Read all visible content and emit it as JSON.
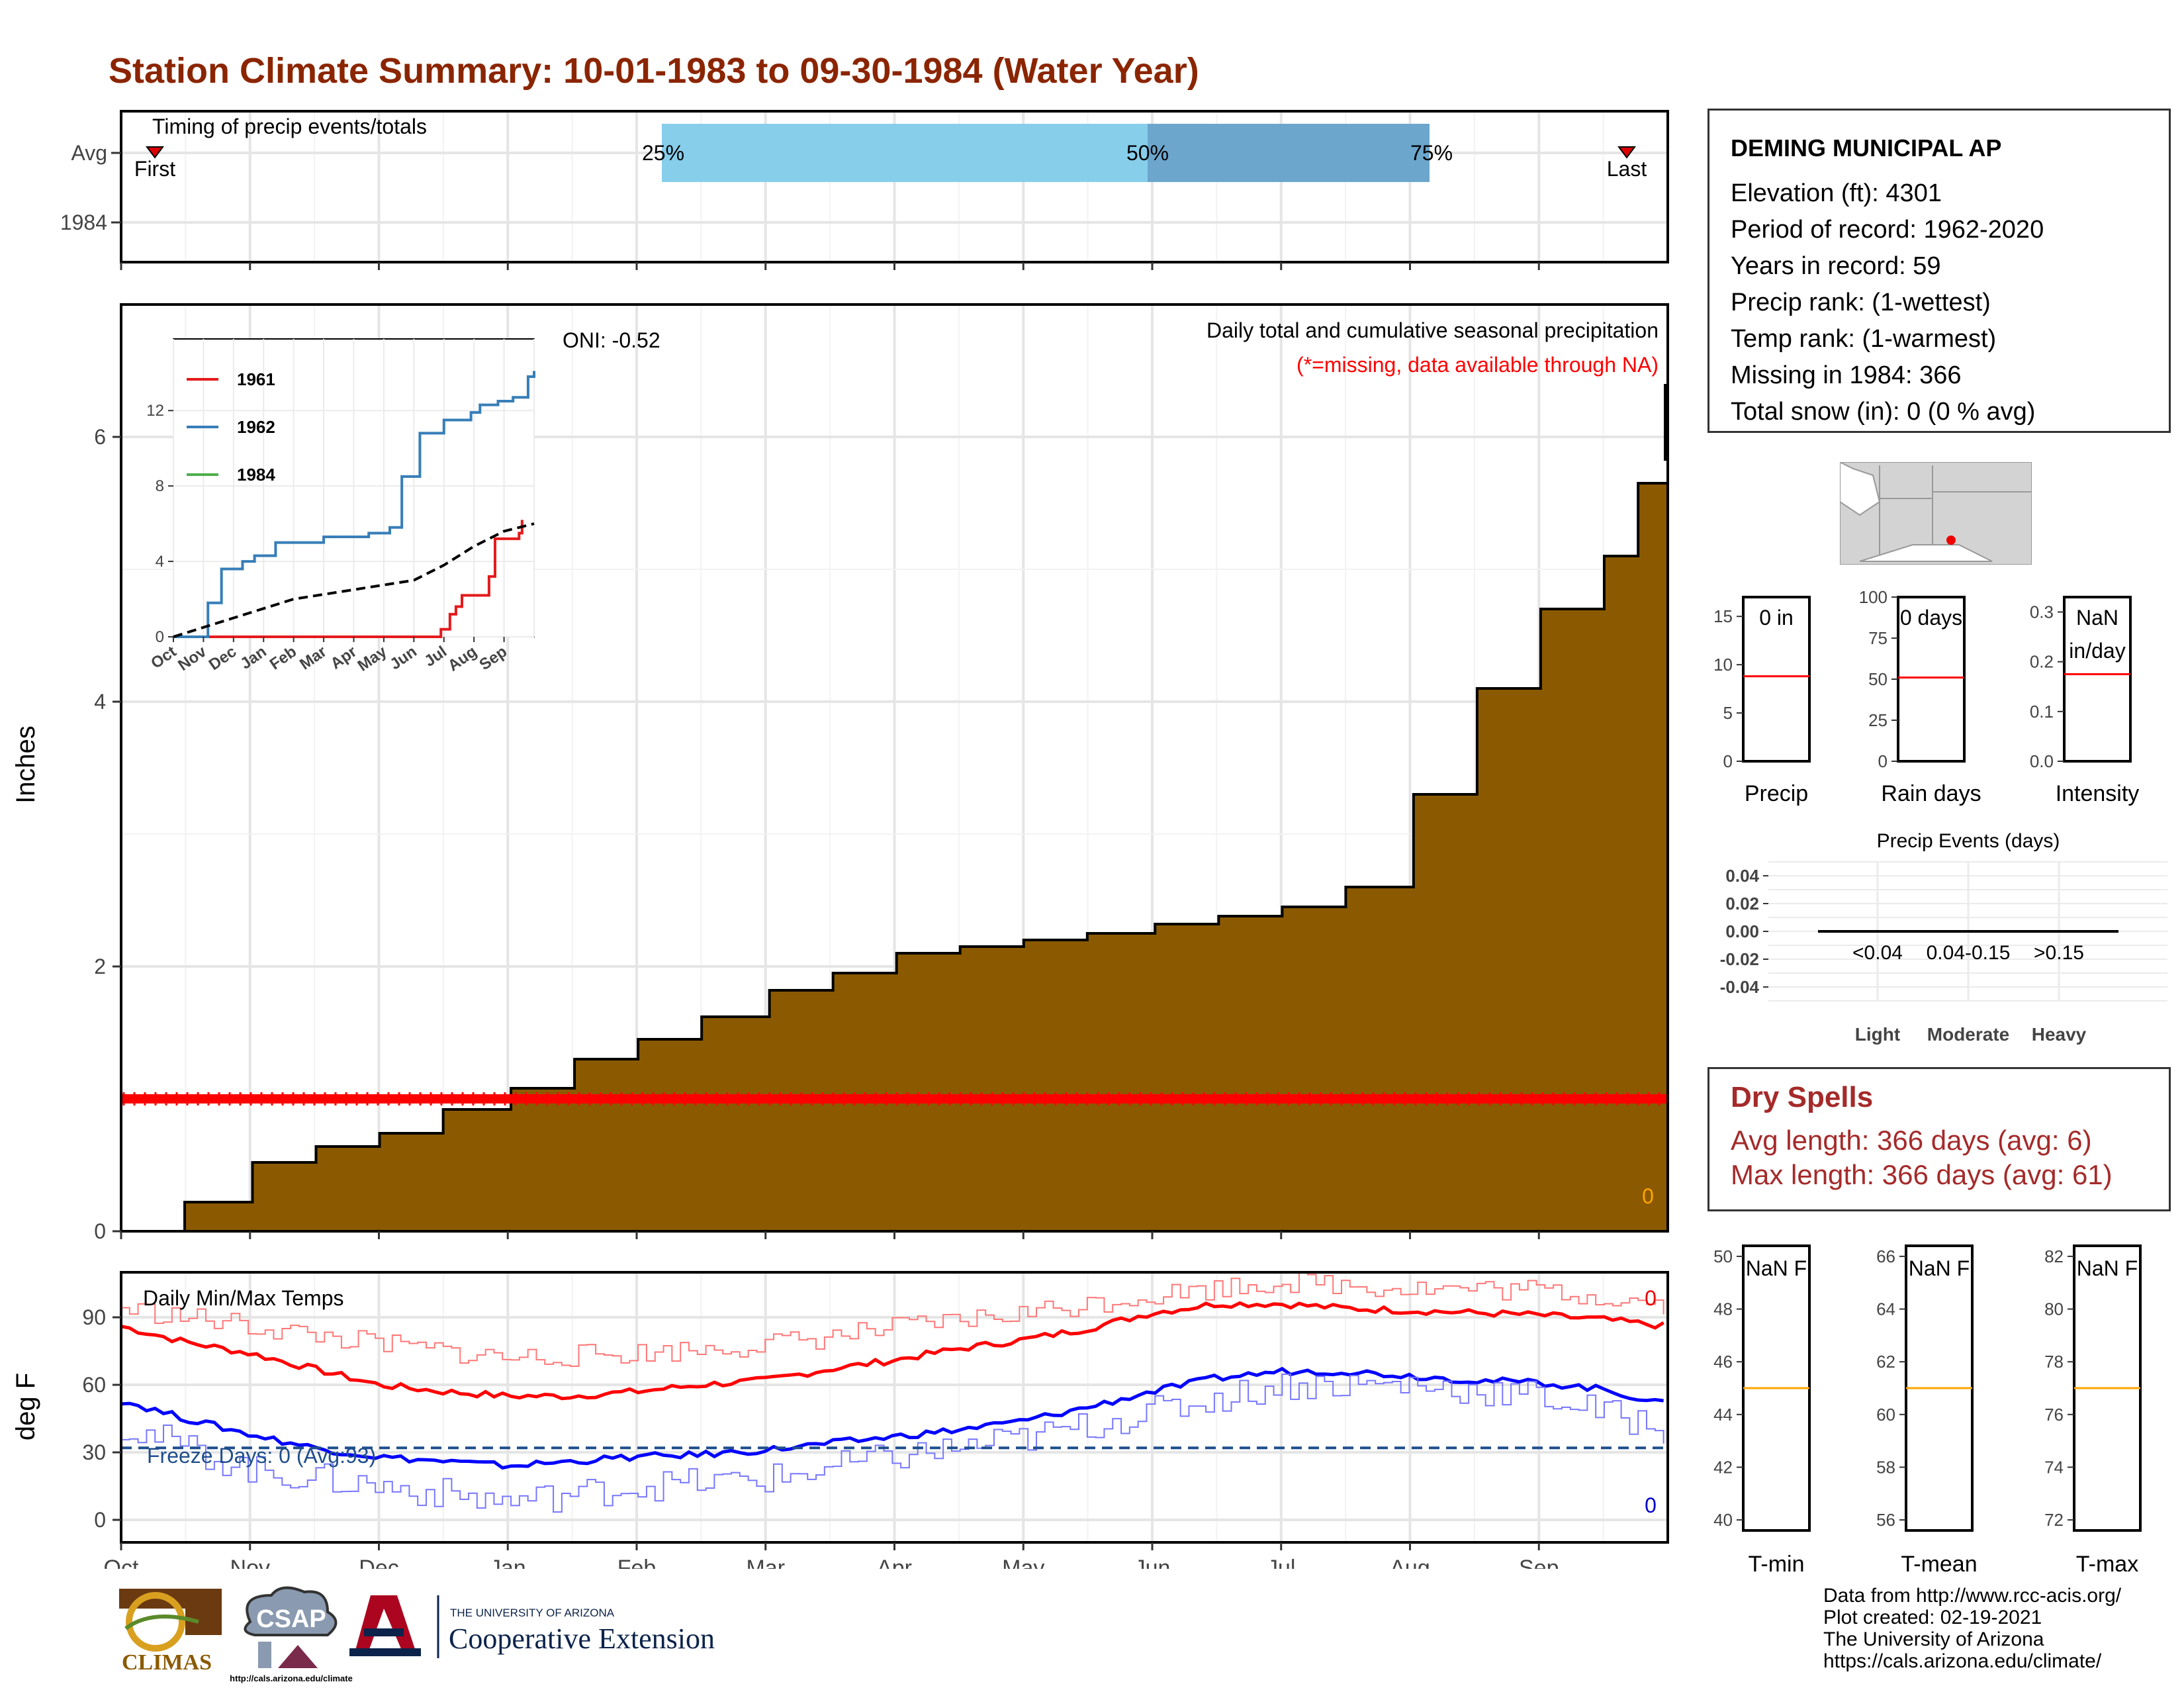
{
  "title": "Station Climate Summary: 10-01-1983 to 09-30-1984 (Water Year)",
  "months": [
    "Oct",
    "Nov",
    "Dec",
    "Jan",
    "Feb",
    "Mar",
    "Apr",
    "May",
    "Jun",
    "Jul",
    "Aug",
    "Sep"
  ],
  "timing": {
    "label": "Timing of precip events/totals",
    "rows": [
      "Avg",
      "1984"
    ],
    "first_label": "First",
    "last_label": "Last",
    "p25_label": "25%",
    "p50_label": "50%",
    "p75_label": "75%",
    "colors": {
      "q1": "#87CEEB",
      "q2": "#6CA6CD"
    }
  },
  "precip": {
    "ylabel": "Inches",
    "oni": "ONI: -0.52",
    "title": "Daily total and cumulative seasonal precipitation",
    "missing_note": "(*=missing, data available through NA)",
    "corner_value": "0",
    "yticks": [
      "0",
      "2",
      "4",
      "6"
    ],
    "fill_color": "#8B5A00",
    "missing_line_color": "#FF0000"
  },
  "inset": {
    "legend": [
      {
        "name": "1961",
        "color": "#E41A1C"
      },
      {
        "name": "1962",
        "color": "#377EB8"
      },
      {
        "name": "1984",
        "color": "#4DAF4A"
      }
    ],
    "yticks": [
      "0",
      "4",
      "8",
      "12"
    ]
  },
  "temps": {
    "ylabel": "deg F",
    "title": "Daily Min/Max Temps",
    "freeze_label": "Freeze Days: 0 (Avg:93)",
    "max_corner": "0",
    "min_corner": "0",
    "yticks": [
      "0",
      "30",
      "60",
      "90"
    ]
  },
  "station": {
    "name": "DEMING MUNICIPAL AP",
    "lines": [
      "Elevation (ft): 4301",
      "Period of record: 1962-2020",
      "Years in record: 59",
      "Precip rank:  (1-wettest)",
      "Temp rank:  (1-warmest)",
      "Missing in 1984: 366",
      "Total snow (in): 0 (0 % avg)"
    ]
  },
  "small_bars": [
    {
      "label": "Precip",
      "value": "0 in",
      "ticks": [
        "0",
        "5",
        "10",
        "15"
      ]
    },
    {
      "label": "Rain days",
      "value": "0 days",
      "ticks": [
        "0",
        "25",
        "50",
        "75",
        "100"
      ]
    },
    {
      "label": "Intensity",
      "value_line1": "NaN",
      "value_line2": "in/day",
      "ticks": [
        "0.0",
        "0.1",
        "0.2",
        "0.3"
      ]
    }
  ],
  "events": {
    "title": "Precip Events (days)",
    "yticks": [
      "0.04",
      "0.02",
      "0.00",
      "-0.02",
      "-0.04"
    ],
    "categories": [
      "Light",
      "Moderate",
      "Heavy"
    ],
    "ranges": [
      "<0.04",
      "0.04-0.15",
      ">0.15"
    ]
  },
  "dry_spells": {
    "title": "Dry Spells",
    "avg": "Avg length: 366 days (avg: 6)",
    "max": "Max length: 366 days (avg: 61)"
  },
  "temp_bars": [
    {
      "label": "T-min",
      "value": "NaN F",
      "ticks": [
        "40",
        "42",
        "44",
        "46",
        "48",
        "50"
      ]
    },
    {
      "label": "T-mean",
      "value": "NaN F",
      "ticks": [
        "56",
        "58",
        "60",
        "62",
        "64",
        "66"
      ]
    },
    {
      "label": "T-max",
      "value": "NaN F",
      "ticks": [
        "72",
        "74",
        "76",
        "78",
        "80",
        "82"
      ]
    }
  ],
  "footer": {
    "lines": [
      "Data from http://www.rcc-acis.org/",
      "Plot created: 02-19-2021",
      "The University of Arizona",
      "https://cals.arizona.edu/climate/"
    ]
  },
  "logos": {
    "climas": "CLIMAS",
    "csap": "CSAP",
    "csap_url": "http://cals.arizona.edu/climate",
    "ua_small": "THE UNIVERSITY OF ARIZONA",
    "ua_big": "Cooperative Extension"
  },
  "chart_data": [
    {
      "type": "area",
      "title": "Daily total and cumulative seasonal precipitation",
      "ylabel": "Inches",
      "ylim": [
        0,
        7
      ],
      "x_categories": [
        "Oct",
        "Nov",
        "Dec",
        "Jan",
        "Feb",
        "Mar",
        "Apr",
        "May",
        "Jun",
        "Jul",
        "Aug",
        "Sep"
      ],
      "series": [
        {
          "name": "cumulative",
          "x_day": [
            0,
            15,
            31,
            46,
            61,
            76,
            92,
            107,
            122,
            137,
            153,
            168,
            183,
            198,
            213,
            228,
            244,
            259,
            274,
            289,
            305,
            320,
            335,
            350,
            358,
            365
          ],
          "values": [
            0,
            0.22,
            0.52,
            0.64,
            0.74,
            0.92,
            1.08,
            1.3,
            1.45,
            1.62,
            1.82,
            1.95,
            2.1,
            2.15,
            2.2,
            2.25,
            2.32,
            2.38,
            2.45,
            2.6,
            3.3,
            4.1,
            4.7,
            5.1,
            5.65,
            5.82
          ]
        }
      ],
      "missing_level": 1.0
    },
    {
      "type": "line",
      "title": "",
      "ylim": [
        0,
        14
      ],
      "x_categories": [
        "Oct",
        "Nov",
        "Dec",
        "Jan",
        "Feb",
        "Mar",
        "Apr",
        "May",
        "Jun",
        "Jul",
        "Aug",
        "Sep"
      ],
      "series": [
        {
          "name": "1961",
          "x_month": [
            0,
            8.6,
            8.9,
            9.2,
            9.4,
            9.6,
            10.5,
            10.7,
            11.5,
            11.6
          ],
          "values": [
            0,
            0,
            0.4,
            1.2,
            1.6,
            2.2,
            3.2,
            5.2,
            5.5,
            6.2
          ]
        },
        {
          "name": "1962",
          "x_month": [
            0,
            1.0,
            1.15,
            1.6,
            2.3,
            2.7,
            3.4,
            5.0,
            6.5,
            7.2,
            7.6,
            8.2,
            9.0,
            9.9,
            10.2,
            10.8,
            11.3,
            11.8,
            12
          ],
          "values": [
            0,
            0,
            1.8,
            3.6,
            4.0,
            4.3,
            5.0,
            5.3,
            5.5,
            5.8,
            8.5,
            10.8,
            11.5,
            11.9,
            12.3,
            12.5,
            12.7,
            13.8,
            14.1
          ]
        },
        {
          "name": "",
          "x_month": [
            0,
            2,
            4,
            6,
            8,
            9,
            10,
            11,
            12
          ],
          "values": [
            0,
            1,
            2,
            2.5,
            3,
            3.8,
            4.8,
            5.6,
            6
          ]
        },
        {
          "name": "1984",
          "x_month": [],
          "values": []
        }
      ]
    },
    {
      "type": "line",
      "title": "Daily Min/Max Temps",
      "ylabel": "deg F",
      "ylim": [
        -10,
        110
      ],
      "x_categories": [
        "Oct",
        "Nov",
        "Dec",
        "Jan",
        "Feb",
        "Mar",
        "Apr",
        "May",
        "Jun",
        "Jul",
        "Aug",
        "Sep"
      ],
      "freeze_line": 32,
      "series": [
        {
          "name": "avg max",
          "x_month": [
            0,
            0.5,
            1,
            1.5,
            2,
            2.5,
            3,
            3.5,
            4,
            4.5,
            5,
            5.5,
            6,
            6.5,
            7,
            7.5,
            8,
            8.5,
            9,
            9.5,
            10,
            10.5,
            11,
            11.5,
            12
          ],
          "values": [
            86,
            79,
            74,
            67,
            60,
            57,
            55,
            55,
            57,
            60,
            62,
            67,
            71,
            76,
            80,
            85,
            92,
            96,
            96,
            94,
            93,
            92,
            91,
            89,
            86
          ]
        },
        {
          "name": "avg min",
          "x_month": [
            0,
            0.5,
            1,
            1.5,
            2,
            2.5,
            3,
            3.5,
            4,
            4.5,
            5,
            5.5,
            6,
            6.5,
            7,
            7.5,
            8,
            8.5,
            9,
            9.5,
            10,
            10.5,
            11,
            11.5,
            12
          ],
          "values": [
            53,
            45,
            38,
            32,
            28,
            26,
            24,
            26,
            28,
            29,
            31,
            34,
            37,
            40,
            44,
            50,
            57,
            63,
            66,
            66,
            64,
            62,
            61,
            58,
            51
          ]
        },
        {
          "name": "record-ish max",
          "x_month": [
            0,
            1,
            2,
            3,
            4,
            5,
            6,
            7,
            8,
            9,
            10,
            11,
            12
          ],
          "values": [
            94,
            86,
            78,
            72,
            74,
            78,
            85,
            92,
            100,
            106,
            103,
            102,
            96
          ]
        },
        {
          "name": "record-ish min",
          "x_month": [
            0,
            1,
            2,
            3,
            4,
            5,
            6,
            7,
            8,
            9,
            10,
            11,
            12
          ],
          "values": [
            42,
            22,
            15,
            8,
            15,
            18,
            28,
            36,
            48,
            60,
            60,
            55,
            40
          ]
        }
      ]
    }
  ]
}
